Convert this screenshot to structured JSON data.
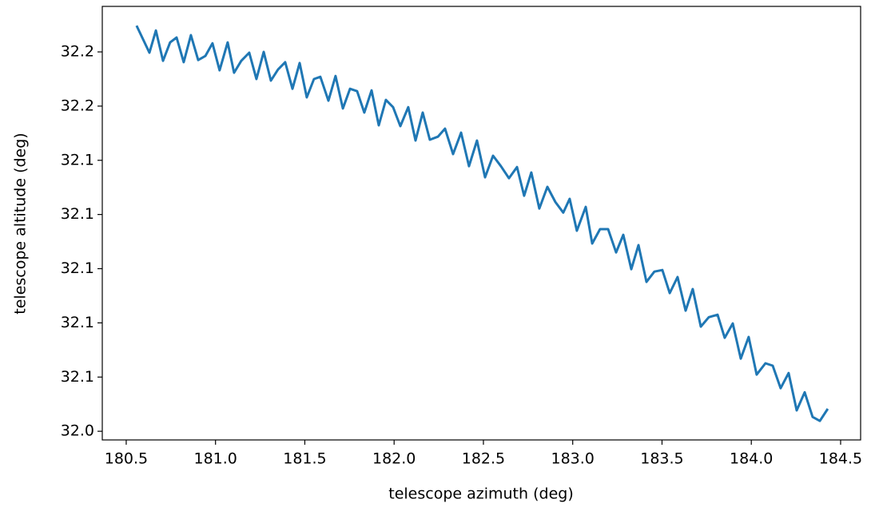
{
  "chart_data": {
    "type": "line",
    "xlabel": "telescope azimuth (deg)",
    "ylabel": "telescope altitude (deg)",
    "xlim": [
      180.366,
      184.612
    ],
    "ylim": [
      32.0368,
      32.1968
    ],
    "xticks": [
      {
        "value": 180.5,
        "label": "180.5"
      },
      {
        "value": 181.0,
        "label": "181.0"
      },
      {
        "value": 181.5,
        "label": "181.5"
      },
      {
        "value": 182.0,
        "label": "182.0"
      },
      {
        "value": 182.5,
        "label": "182.5"
      },
      {
        "value": 183.0,
        "label": "183.0"
      },
      {
        "value": 183.5,
        "label": "183.5"
      },
      {
        "value": 184.0,
        "label": "184.0"
      },
      {
        "value": 184.5,
        "label": "184.5"
      }
    ],
    "yticks": [
      {
        "value": 32.04,
        "label": "32.0"
      },
      {
        "value": 32.06,
        "label": "32.1"
      },
      {
        "value": 32.08,
        "label": "32.1"
      },
      {
        "value": 32.1,
        "label": "32.1"
      },
      {
        "value": 32.12,
        "label": "32.1"
      },
      {
        "value": 32.14,
        "label": "32.1"
      },
      {
        "value": 32.16,
        "label": "32.2"
      },
      {
        "value": 32.18,
        "label": "32.2"
      }
    ],
    "color": "#1f77b4",
    "x": [
      180.558,
      180.63,
      180.666,
      180.706,
      180.746,
      180.782,
      180.822,
      180.862,
      180.903,
      180.943,
      180.983,
      181.023,
      181.068,
      181.104,
      181.144,
      181.189,
      181.229,
      181.27,
      181.31,
      181.35,
      181.39,
      181.431,
      181.471,
      181.511,
      181.551,
      181.587,
      181.632,
      181.672,
      181.713,
      181.753,
      181.793,
      181.833,
      181.874,
      181.914,
      181.954,
      181.994,
      182.035,
      182.079,
      182.12,
      182.16,
      182.2,
      182.245,
      182.285,
      182.33,
      182.375,
      182.419,
      182.464,
      182.509,
      182.554,
      182.598,
      182.643,
      182.688,
      182.728,
      182.768,
      182.813,
      182.858,
      182.903,
      182.947,
      182.983,
      183.023,
      183.073,
      183.109,
      183.153,
      183.198,
      183.243,
      183.283,
      183.328,
      183.368,
      183.413,
      183.457,
      183.502,
      183.543,
      183.587,
      183.632,
      183.672,
      183.717,
      183.762,
      183.811,
      183.851,
      183.896,
      183.941,
      183.985,
      184.03,
      184.079,
      184.12,
      184.164,
      184.209,
      184.254,
      184.299,
      184.343,
      184.384,
      184.428
    ],
    "values": [
      32.1897,
      32.1797,
      32.1879,
      32.1767,
      32.1835,
      32.1853,
      32.1762,
      32.1862,
      32.177,
      32.1785,
      32.1832,
      32.1732,
      32.1835,
      32.1723,
      32.1767,
      32.1797,
      32.17,
      32.18,
      32.1694,
      32.1735,
      32.1762,
      32.1664,
      32.1759,
      32.1632,
      32.17,
      32.1708,
      32.162,
      32.1711,
      32.1591,
      32.1664,
      32.1655,
      32.1576,
      32.1658,
      32.1529,
      32.1623,
      32.1596,
      32.1526,
      32.1596,
      32.1473,
      32.1576,
      32.1476,
      32.1487,
      32.1517,
      32.1423,
      32.1502,
      32.1378,
      32.1473,
      32.1337,
      32.1417,
      32.1378,
      32.1334,
      32.1375,
      32.1269,
      32.1355,
      32.1222,
      32.1302,
      32.1246,
      32.1207,
      32.1258,
      32.114,
      32.1228,
      32.1093,
      32.1146,
      32.1146,
      32.106,
      32.1125,
      32.0998,
      32.1087,
      32.0951,
      32.0989,
      32.0995,
      32.091,
      32.0969,
      32.0845,
      32.0925,
      32.0786,
      32.0821,
      32.083,
      32.0745,
      32.0798,
      32.0668,
      32.0748,
      32.0609,
      32.0651,
      32.0642,
      32.0559,
      32.0615,
      32.0477,
      32.0544,
      32.0453,
      32.0438,
      32.0483
    ]
  }
}
